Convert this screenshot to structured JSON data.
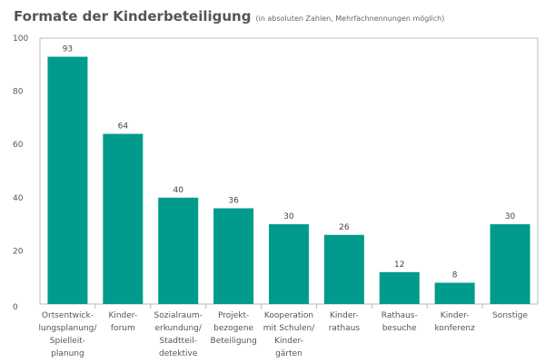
{
  "chart_data": {
    "type": "bar",
    "title": "Formate der Kinderbeteiligung",
    "subtitle": "(in absoluten Zahlen, Mehrfachnennungen möglich)",
    "categories": [
      [
        "Ortsentwick-",
        "lungsplanung/",
        "Spielleit-",
        "planung"
      ],
      [
        "Kinder-",
        "forum"
      ],
      [
        "Sozialraum-",
        "erkundung/",
        "Stadtteil-",
        "detektive"
      ],
      [
        "Projekt-",
        "bezogene",
        "Beteiligung"
      ],
      [
        "Kooperation",
        "mit Schulen/",
        "Kinder-",
        "gärten"
      ],
      [
        "Kinder-",
        "rathaus"
      ],
      [
        "Rathaus-",
        "besuche"
      ],
      [
        "Kinder-",
        "konferenz"
      ],
      [
        "Sonstige"
      ]
    ],
    "values": [
      93,
      64,
      40,
      36,
      30,
      26,
      12,
      8,
      30
    ],
    "ylim": [
      0,
      100
    ],
    "yticks": [
      "0",
      "20",
      "40",
      "60",
      "80",
      "100"
    ],
    "grid": false,
    "bar_color": "#009b8c",
    "axis_color": "#bbbbbb"
  }
}
